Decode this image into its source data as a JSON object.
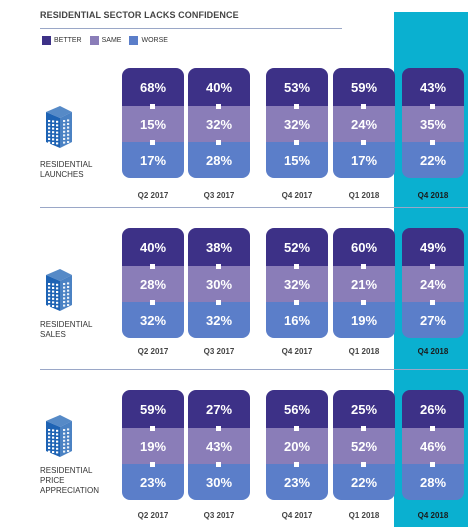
{
  "chart_data": {
    "type": "bar",
    "title": "RESIDENTIAL SECTOR LACKS CONFIDENCE",
    "categories": [
      "Q2 2017",
      "Q3 2017",
      "Q4 2017",
      "Q1 2018",
      "Q4 2018"
    ],
    "highlighted_category": "Q4 2018",
    "legend": [
      {
        "label": "BETTER",
        "color": "#3d3187"
      },
      {
        "label": "SAME",
        "color": "#8a7db8"
      },
      {
        "label": "WORSE",
        "color": "#5b7ec9"
      }
    ],
    "groups": [
      {
        "label": [
          "RESIDENTIAL",
          "LAUNCHES"
        ],
        "series": [
          {
            "name": "BETTER",
            "values": [
              68,
              40,
              53,
              59,
              43
            ]
          },
          {
            "name": "SAME",
            "values": [
              15,
              32,
              32,
              24,
              35
            ]
          },
          {
            "name": "WORSE",
            "values": [
              17,
              28,
              15,
              17,
              22
            ]
          }
        ]
      },
      {
        "label": [
          "RESIDENTIAL",
          "SALES"
        ],
        "series": [
          {
            "name": "BETTER",
            "values": [
              40,
              38,
              52,
              60,
              49
            ]
          },
          {
            "name": "SAME",
            "values": [
              28,
              30,
              32,
              21,
              24
            ]
          },
          {
            "name": "WORSE",
            "values": [
              32,
              32,
              16,
              19,
              27
            ]
          }
        ]
      },
      {
        "label": [
          "RESIDENTIAL",
          "PRICE",
          "APPRECIATION"
        ],
        "series": [
          {
            "name": "BETTER",
            "values": [
              59,
              27,
              56,
              25,
              26
            ]
          },
          {
            "name": "SAME",
            "values": [
              19,
              43,
              20,
              52,
              46
            ]
          },
          {
            "name": "WORSE",
            "values": [
              23,
              30,
              23,
              22,
              28
            ]
          }
        ]
      }
    ],
    "value_suffix": "%"
  },
  "colors": {
    "highlight_bg": "#0ab0d0",
    "rule": "#9aa7c7",
    "building": "#1e63b4"
  }
}
